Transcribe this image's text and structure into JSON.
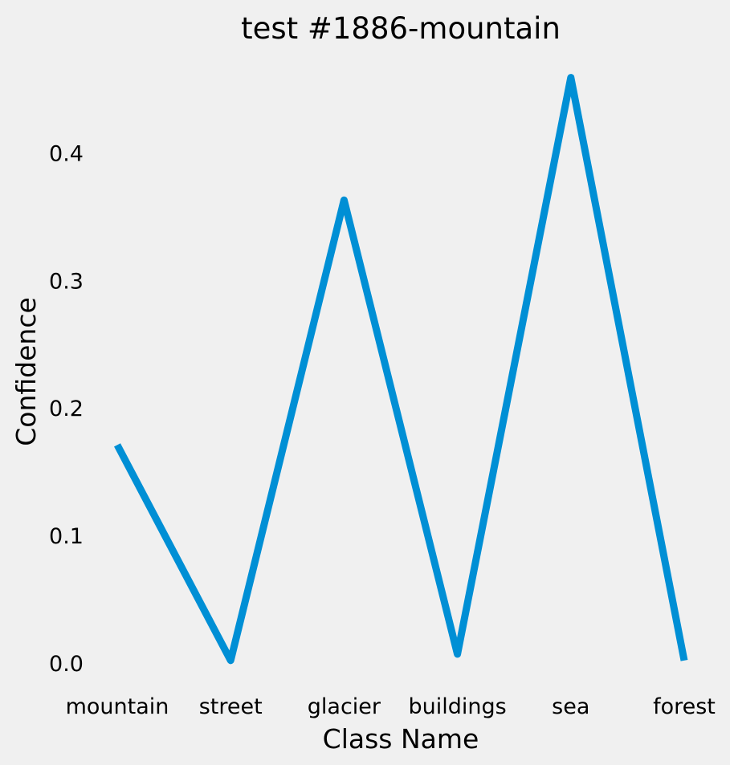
{
  "chart_data": {
    "type": "line",
    "title": "test #1886-mountain",
    "xlabel": "Class Name",
    "ylabel": "Confidence",
    "categories": [
      "mountain",
      "street",
      "glacier",
      "buildings",
      "sea",
      "forest"
    ],
    "series": [
      {
        "values": [
          0.171,
          0.002,
          0.363,
          0.007,
          0.459,
          0.002
        ],
        "color": "#008fd5"
      }
    ],
    "y_ticks": [
      "0.0",
      "0.1",
      "0.2",
      "0.3",
      "0.4"
    ],
    "ylim": [
      0.0,
      0.4
    ],
    "grid": false,
    "legend": false
  }
}
